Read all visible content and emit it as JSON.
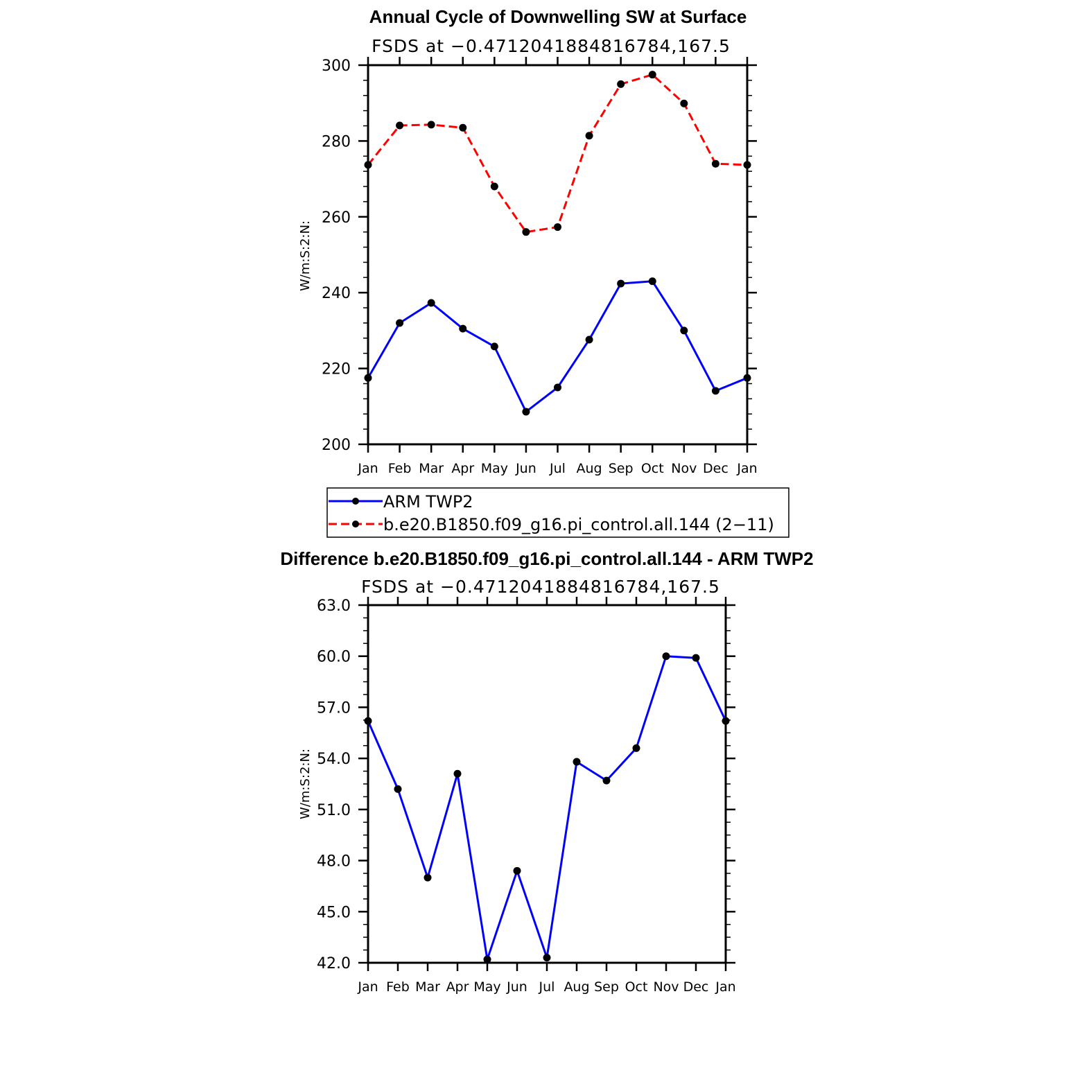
{
  "chart_data": [
    {
      "type": "line",
      "title": "Annual Cycle of Downwelling SW at Surface",
      "subtitle": "FSDS at −0.4712041884816784,167.5",
      "ylabel": "W/m:S:2:N:",
      "ylim": [
        200,
        300
      ],
      "yticks": [
        "200",
        "220",
        "240",
        "260",
        "280",
        "300"
      ],
      "categories": [
        "Jan",
        "Feb",
        "Mar",
        "Apr",
        "May",
        "Jun",
        "Jul",
        "Aug",
        "Sep",
        "Oct",
        "Nov",
        "Dec",
        "Jan"
      ],
      "series": [
        {
          "name": "ARM TWP2",
          "color": "#0000ff",
          "dash": "solid",
          "values": [
            217.5,
            232.0,
            237.3,
            230.5,
            225.8,
            208.6,
            215.0,
            227.6,
            242.4,
            243.0,
            230.0,
            214.1,
            217.5
          ]
        },
        {
          "name": "b.e20.B1850.f09_g16.pi_control.all.144 (2−11)",
          "color": "#ff0000",
          "dash": "dashed",
          "values": [
            273.7,
            284.1,
            284.3,
            283.5,
            268.0,
            256.0,
            257.3,
            281.4,
            295.0,
            297.5,
            289.9,
            274.0,
            273.7
          ]
        }
      ],
      "grid": false,
      "legend_position": "bottom"
    },
    {
      "type": "line",
      "title": "Difference b.e20.B1850.f09_g16.pi_control.all.144 - ARM TWP2",
      "subtitle": "FSDS at −0.4712041884816784,167.5",
      "ylabel": "W/m:S:2:N:",
      "ylim": [
        42,
        63
      ],
      "yticks": [
        "42.0",
        "45.0",
        "48.0",
        "51.0",
        "54.0",
        "57.0",
        "60.0",
        "63.0"
      ],
      "categories": [
        "Jan",
        "Feb",
        "Mar",
        "Apr",
        "May",
        "Jun",
        "Jul",
        "Aug",
        "Sep",
        "Oct",
        "Nov",
        "Dec",
        "Jan"
      ],
      "series": [
        {
          "color": "#0000ff",
          "dash": "solid",
          "values": [
            56.2,
            52.2,
            47.0,
            53.1,
            42.2,
            47.4,
            42.3,
            53.8,
            52.7,
            54.6,
            60.0,
            59.9,
            56.2
          ]
        }
      ],
      "grid": false
    }
  ],
  "legend": {
    "items": [
      {
        "label": "ARM TWP2",
        "color": "#0000ff",
        "dash": "solid"
      },
      {
        "label": "b.e20.B1850.f09_g16.pi_control.all.144 (2−11)",
        "color": "#ff0000",
        "dash": "dashed"
      }
    ]
  }
}
